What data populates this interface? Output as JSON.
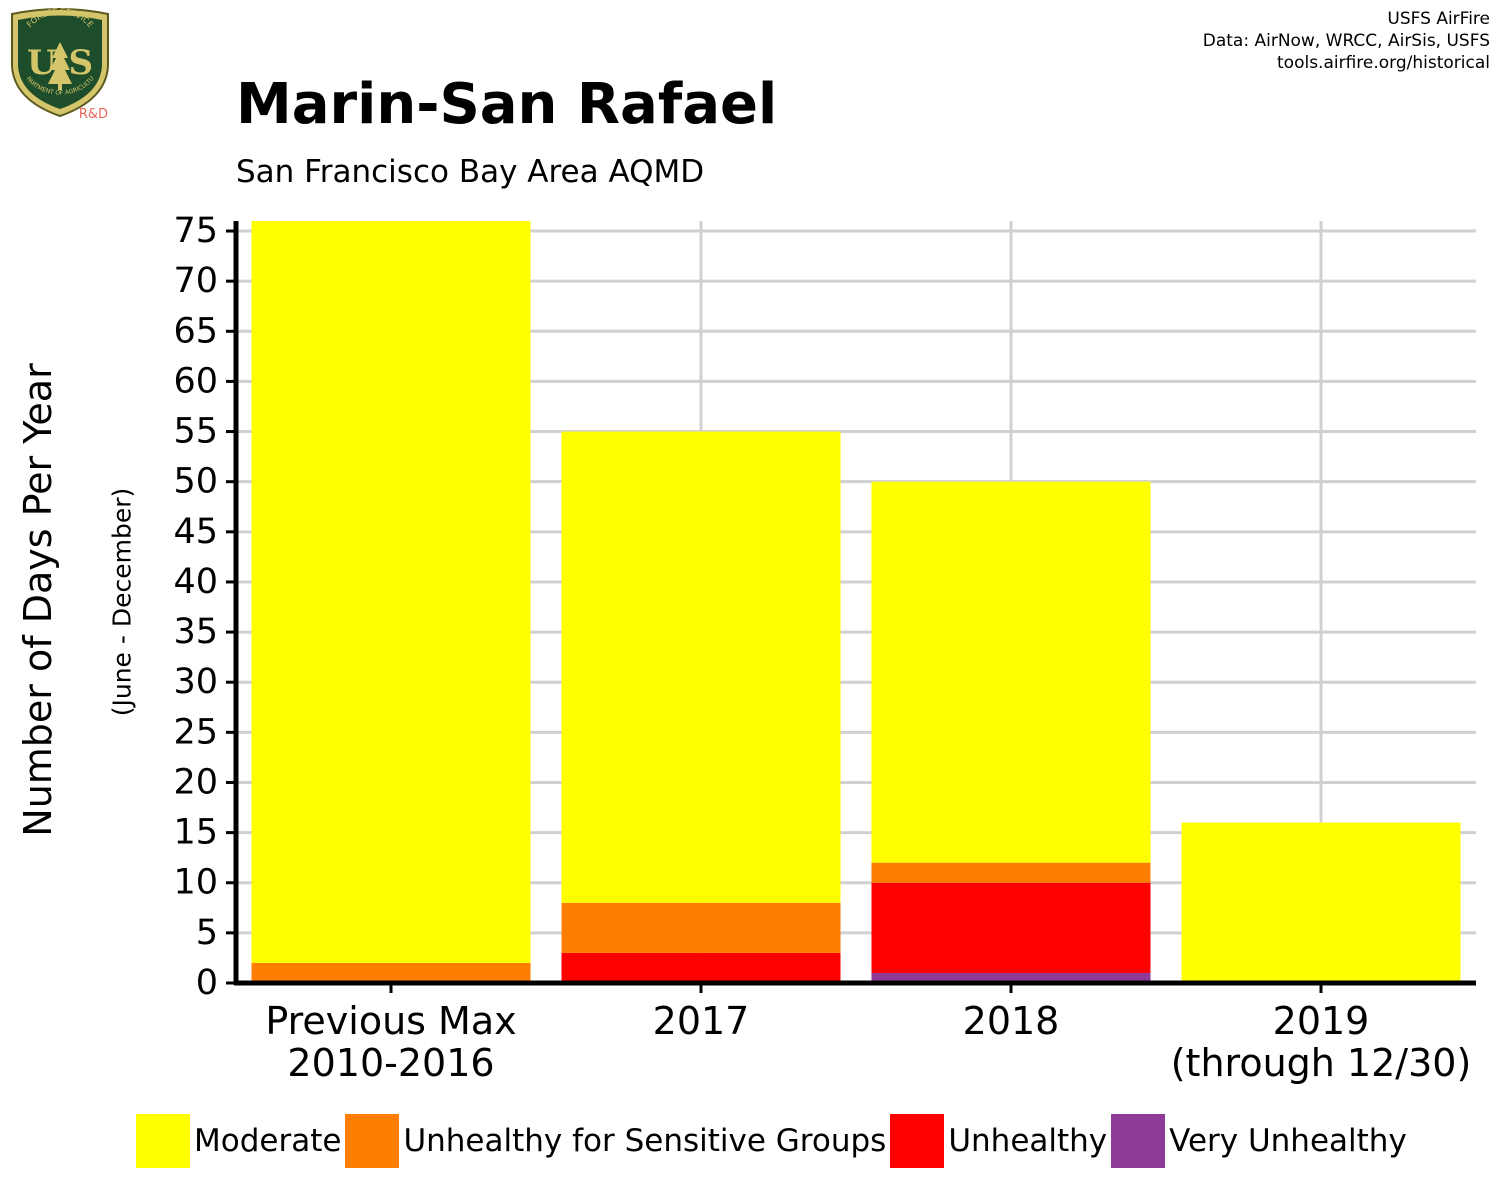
{
  "credits": {
    "line1": "USFS AirFire",
    "line2": "Data: AirNow, WRCC, AirSis, USFS",
    "line3": "tools.airfire.org/historical"
  },
  "logo": {
    "icon": "usfs-shield-logo",
    "top_text": "FOREST SERVICE",
    "letters": "U S",
    "bottom_text": "DEPARTMENT OF AGRICULTURE",
    "rd": "R&D"
  },
  "chart_data": {
    "type": "bar",
    "stacked": true,
    "title": "Marin-San Rafael",
    "subtitle": "San Francisco Bay Area AQMD",
    "ylabel": "Number of Days Per Year",
    "ylabel_sub": "(June - December)",
    "xlabel": "",
    "categories": [
      [
        "Previous Max",
        "2010-2016"
      ],
      [
        "2017"
      ],
      [
        "2018"
      ],
      [
        "2019",
        "(through 12/30)"
      ]
    ],
    "ylim": [
      0,
      76
    ],
    "yticks": [
      0,
      5,
      10,
      15,
      20,
      25,
      30,
      35,
      40,
      45,
      50,
      55,
      60,
      65,
      70,
      75
    ],
    "grid": true,
    "legend_position": "bottom",
    "series": [
      {
        "name": "Very Unhealthy",
        "color": "#8E3B97",
        "values": [
          0,
          0,
          1,
          0
        ]
      },
      {
        "name": "Unhealthy",
        "color": "#FF0000",
        "values": [
          0,
          3,
          9,
          0
        ]
      },
      {
        "name": "Unhealthy for Sensitive Groups",
        "color": "#FF7E00",
        "values": [
          2,
          5,
          2,
          0
        ]
      },
      {
        "name": "Moderate",
        "color": "#FFFF00",
        "values": [
          74,
          47,
          38,
          16
        ]
      }
    ],
    "legend_order": [
      "Moderate",
      "Unhealthy for Sensitive Groups",
      "Unhealthy",
      "Very Unhealthy"
    ]
  }
}
